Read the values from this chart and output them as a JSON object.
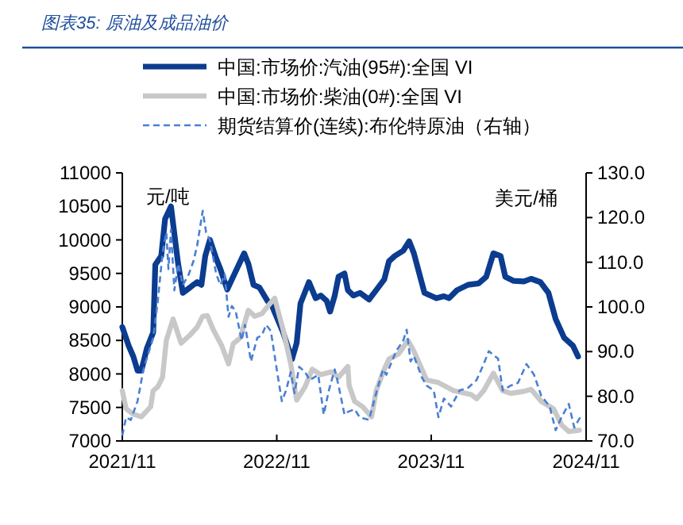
{
  "chart_data": {
    "type": "line",
    "title": "图表35: 原油及成品油价",
    "ylabel": "元/吨",
    "y2label": "美元/桶",
    "legend": "top",
    "xlim": [
      "2021-11",
      "2024-11"
    ],
    "xticks": [
      {
        "value": "2021-11",
        "label": "2021/11"
      },
      {
        "value": "2022-11",
        "label": "2022/11"
      },
      {
        "value": "2023-11",
        "label": "2023/11"
      },
      {
        "value": "2024-11",
        "label": "2024/11"
      }
    ],
    "ylim": [
      7000,
      11000
    ],
    "yticks": [
      7000,
      7500,
      8000,
      8500,
      9000,
      9500,
      10000,
      10500,
      11000
    ],
    "y2lim": [
      70,
      130
    ],
    "y2ticks": [
      {
        "value": 70,
        "label": "70.0"
      },
      {
        "value": 80,
        "label": "80.0"
      },
      {
        "value": 90,
        "label": "90.0"
      },
      {
        "value": 100,
        "label": "100.0"
      },
      {
        "value": 110,
        "label": "110.0"
      },
      {
        "value": 120,
        "label": "120.0"
      },
      {
        "value": 130,
        "label": "130.0"
      }
    ],
    "series": [
      {
        "name": "中国:市场价:汽油(95#):全国 VI",
        "color": "#0b3c8f",
        "line_style": "solid",
        "x": [
          "2021-11-01",
          "2021-11-16",
          "2021-11-27",
          "2021-12-07",
          "2021-12-16",
          "2021-12-29",
          "2022-01-13",
          "2022-01-18",
          "2022-02-01",
          "2022-02-10",
          "2022-02-24",
          "2022-03-05",
          "2022-03-13",
          "2022-03-24",
          "2022-04-10",
          "2022-04-18",
          "2022-04-27",
          "2022-05-07",
          "2022-05-16",
          "2022-05-27",
          "2022-06-11",
          "2022-06-21",
          "2022-07-07",
          "2022-07-24",
          "2022-08-16",
          "2022-08-26",
          "2022-09-07",
          "2022-09-21",
          "2022-10-10",
          "2022-10-21",
          "2022-11-16",
          "2022-12-07",
          "2022-12-18",
          "2022-12-27",
          "2023-01-16",
          "2023-02-01",
          "2023-02-13",
          "2023-02-27",
          "2023-03-07",
          "2023-03-18",
          "2023-03-27",
          "2023-04-10",
          "2023-04-18",
          "2023-05-01",
          "2023-05-17",
          "2023-06-07",
          "2023-06-24",
          "2023-07-13",
          "2023-07-24",
          "2023-08-07",
          "2023-08-27",
          "2023-09-10",
          "2023-09-21",
          "2023-10-16",
          "2023-11-13",
          "2023-12-01",
          "2023-12-13",
          "2024-01-01",
          "2024-01-27",
          "2024-02-21",
          "2024-03-10",
          "2024-03-27",
          "2024-04-13",
          "2024-04-24",
          "2024-05-13",
          "2024-06-07",
          "2024-06-24",
          "2024-07-16",
          "2024-08-04",
          "2024-08-21",
          "2024-09-10",
          "2024-10-01",
          "2024-10-13"
        ],
        "values": [
          8700,
          8420,
          8260,
          8050,
          8050,
          8380,
          8620,
          9630,
          9760,
          10310,
          10500,
          10040,
          9640,
          9210,
          9290,
          9330,
          9370,
          9330,
          9760,
          10000,
          9720,
          9560,
          9260,
          9490,
          9800,
          9640,
          9330,
          9290,
          9090,
          9010,
          8620,
          8220,
          8460,
          9050,
          9370,
          9130,
          9170,
          9090,
          8930,
          9170,
          9450,
          9500,
          9250,
          9170,
          9210,
          9110,
          9250,
          9410,
          9680,
          9760,
          9840,
          9980,
          9800,
          9210,
          9130,
          9160,
          9130,
          9250,
          9330,
          9350,
          9450,
          9800,
          9760,
          9450,
          9390,
          9380,
          9420,
          9370,
          9210,
          8820,
          8540,
          8420,
          8260
        ]
      },
      {
        "name": "中国:市场价:柴油(0#):全国 VI",
        "color": "#c8c8c8",
        "line_style": "solid",
        "x": [
          "2021-11-01",
          "2021-11-10",
          "2021-11-27",
          "2021-12-16",
          "2022-01-07",
          "2022-01-13",
          "2022-01-24",
          "2022-02-04",
          "2022-02-13",
          "2022-03-01",
          "2022-03-20",
          "2022-04-10",
          "2022-04-27",
          "2022-05-10",
          "2022-05-21",
          "2022-06-04",
          "2022-06-24",
          "2022-07-10",
          "2022-07-21",
          "2022-08-07",
          "2022-08-18",
          "2022-08-26",
          "2022-09-10",
          "2022-09-27",
          "2022-10-16",
          "2022-10-27",
          "2022-11-16",
          "2022-12-04",
          "2022-12-18",
          "2023-01-07",
          "2023-01-24",
          "2023-02-13",
          "2023-03-10",
          "2023-03-27",
          "2023-04-18",
          "2023-04-21",
          "2023-05-04",
          "2023-05-23",
          "2023-06-13",
          "2023-06-24",
          "2023-07-13",
          "2023-07-24",
          "2023-08-16",
          "2023-09-07",
          "2023-09-21",
          "2023-10-10",
          "2023-10-21",
          "2023-11-18",
          "2023-12-24",
          "2024-02-04",
          "2024-02-16",
          "2024-03-04",
          "2024-03-27",
          "2024-04-18",
          "2024-05-07",
          "2024-06-07",
          "2024-06-24",
          "2024-07-18",
          "2024-08-16",
          "2024-09-04",
          "2024-09-21",
          "2024-10-16"
        ],
        "values": [
          7750,
          7480,
          7400,
          7360,
          7510,
          7750,
          7810,
          7950,
          8500,
          8820,
          8460,
          8580,
          8700,
          8860,
          8870,
          8660,
          8420,
          8150,
          8450,
          8540,
          8780,
          8950,
          8860,
          8900,
          9050,
          9130,
          8660,
          8150,
          7610,
          7810,
          8070,
          7990,
          8030,
          7950,
          8110,
          7830,
          7590,
          7510,
          7360,
          7750,
          8070,
          8220,
          8300,
          8500,
          8340,
          8070,
          7910,
          7870,
          7750,
          7690,
          7630,
          7750,
          8010,
          7750,
          7710,
          7740,
          7770,
          7590,
          7480,
          7240,
          7140,
          7160
        ]
      },
      {
        "name": "期货结算价(连续):布伦特原油（右轴）",
        "color": "#4a7fd4",
        "line_style": "dashed",
        "axis": "y2",
        "x": [
          "2021-11-01",
          "2021-11-10",
          "2021-11-21",
          "2021-12-07",
          "2021-12-21",
          "2022-01-13",
          "2022-01-24",
          "2022-02-04",
          "2022-02-13",
          "2022-02-18",
          "2022-02-24",
          "2022-03-04",
          "2022-03-13",
          "2022-03-24",
          "2022-04-07",
          "2022-04-18",
          "2022-04-27",
          "2022-05-10",
          "2022-05-18",
          "2022-05-27",
          "2022-06-11",
          "2022-06-21",
          "2022-07-01",
          "2022-07-10",
          "2022-07-18",
          "2022-07-27",
          "2022-08-10",
          "2022-08-18",
          "2022-09-01",
          "2022-09-16",
          "2022-09-27",
          "2022-10-07",
          "2022-10-18",
          "2022-11-01",
          "2022-11-13",
          "2022-11-23",
          "2022-12-04",
          "2022-12-13",
          "2022-12-24",
          "2023-01-07",
          "2023-01-18",
          "2023-02-07",
          "2023-02-20",
          "2023-03-04",
          "2023-03-18",
          "2023-03-27",
          "2023-04-10",
          "2023-04-18",
          "2023-05-04",
          "2023-05-16",
          "2023-06-07",
          "2023-06-24",
          "2023-07-10",
          "2023-07-18",
          "2023-08-10",
          "2023-08-27",
          "2023-09-04",
          "2023-09-13",
          "2023-09-21",
          "2023-10-10",
          "2023-10-21",
          "2023-11-07",
          "2023-11-18",
          "2023-12-01",
          "2023-12-18",
          "2024-01-07",
          "2024-01-27",
          "2024-02-16",
          "2024-03-04",
          "2024-03-16",
          "2024-04-07",
          "2024-04-18",
          "2024-05-07",
          "2024-05-24",
          "2024-06-13",
          "2024-07-01",
          "2024-07-18",
          "2024-08-07",
          "2024-08-21",
          "2024-09-04",
          "2024-09-21",
          "2024-10-04",
          "2024-10-18"
        ],
        "values": [
          71.2,
          75.3,
          74.7,
          78.9,
          86.0,
          93.1,
          101.4,
          112.0,
          116.7,
          108.5,
          117.3,
          103.7,
          109.7,
          104.9,
          107.3,
          110.2,
          113.8,
          121.5,
          116.7,
          115.0,
          107.3,
          104.9,
          107.3,
          97.8,
          100.2,
          99.0,
          92.5,
          96.0,
          87.8,
          93.1,
          93.7,
          96.0,
          94.6,
          86.0,
          78.9,
          81.3,
          85.4,
          80.7,
          86.6,
          85.4,
          83.6,
          84.8,
          75.9,
          81.3,
          86.0,
          82.4,
          75.9,
          76.5,
          77.1,
          75.3,
          74.7,
          80.7,
          86.0,
          84.8,
          90.1,
          92.5,
          94.9,
          87.8,
          89.0,
          84.2,
          82.4,
          81.3,
          75.3,
          79.5,
          77.7,
          81.3,
          81.9,
          83.6,
          87.2,
          90.1,
          88.4,
          81.3,
          82.4,
          83.0,
          87.2,
          84.8,
          80.1,
          77.7,
          72.4,
          75.3,
          78.3,
          73.0,
          75.3
        ]
      }
    ]
  }
}
